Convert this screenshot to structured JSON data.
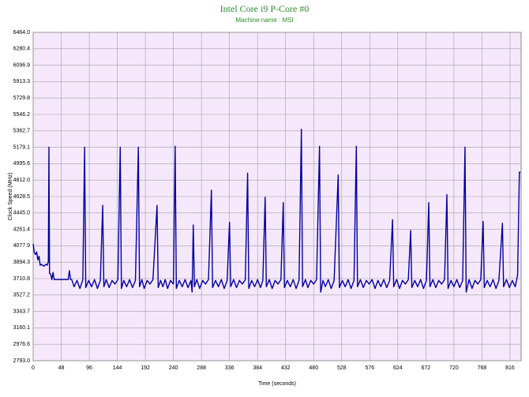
{
  "chart_data": {
    "type": "line",
    "title": "Intel Core i9 P-Core #0",
    "subtitle": "Machine name : MSI",
    "x_label": "Time (seconds)",
    "y_label": "Clock Speed (MHz)",
    "color": "#0000a0",
    "grid": true,
    "xlim": [
      0,
      835
    ],
    "ylim": [
      2793,
      6464
    ],
    "xticks": [
      0,
      48,
      96,
      144,
      192,
      240,
      288,
      336,
      384,
      432,
      480,
      528,
      576,
      624,
      672,
      720,
      768,
      816
    ],
    "yticks": [
      {
        "value": 2793,
        "label": "2793.0"
      },
      2976.6,
      3160.1,
      3343.7,
      3527.2,
      3710.8,
      3894.3,
      4077.9,
      4261.4,
      {
        "value": 4445,
        "label": "4445.0"
      },
      4628.5,
      {
        "value": 4812,
        "label": "4812.0"
      },
      4995.6,
      5179.1,
      5362.7,
      5546.2,
      5729.8,
      5913.3,
      6096.9,
      6280.4,
      {
        "value": 6464,
        "label": "6464.0"
      }
    ],
    "x": [
      0,
      2,
      4,
      6,
      8,
      10,
      12,
      14,
      16,
      18,
      20,
      22,
      24,
      26,
      27,
      28,
      30,
      32,
      34,
      36,
      40,
      44,
      48,
      52,
      56,
      60,
      62,
      64,
      66,
      70,
      75,
      80,
      85,
      88,
      90,
      95,
      100,
      105,
      110,
      115,
      119,
      121,
      125,
      130,
      135,
      140,
      145,
      149,
      151,
      155,
      160,
      165,
      170,
      175,
      180,
      182,
      186,
      190,
      195,
      200,
      205,
      212,
      214,
      218,
      222,
      226,
      230,
      235,
      240,
      243,
      245,
      250,
      255,
      260,
      265,
      270,
      272,
      274,
      276,
      280,
      285,
      290,
      295,
      300,
      305,
      307,
      312,
      317,
      322,
      327,
      332,
      336,
      338,
      343,
      348,
      353,
      358,
      363,
      367,
      369,
      374,
      379,
      384,
      389,
      393,
      397,
      399,
      404,
      409,
      414,
      419,
      424,
      428,
      430,
      435,
      440,
      445,
      450,
      455,
      459,
      461,
      466,
      470,
      475,
      480,
      485,
      490,
      492,
      496,
      500,
      505,
      510,
      515,
      522,
      524,
      529,
      534,
      539,
      544,
      549,
      553,
      555,
      560,
      565,
      570,
      575,
      580,
      585,
      590,
      595,
      600,
      605,
      610,
      615,
      617,
      622,
      627,
      632,
      637,
      642,
      646,
      648,
      653,
      658,
      663,
      668,
      673,
      677,
      679,
      684,
      689,
      694,
      699,
      704,
      708,
      710,
      715,
      720,
      725,
      730,
      735,
      739,
      741,
      746,
      751,
      756,
      761,
      766,
      770,
      772,
      777,
      782,
      787,
      792,
      797,
      803,
      805,
      810,
      815,
      820,
      825,
      829,
      832,
      834
    ],
    "values": [
      4100,
      4000,
      3980,
      4010,
      3920,
      3960,
      3860,
      3870,
      3860,
      3850,
      3860,
      3870,
      3860,
      3900,
      5180,
      3770,
      3760,
      3700,
      3780,
      3700,
      3700,
      3700,
      3700,
      3700,
      3700,
      3700,
      3800,
      3700,
      3700,
      3620,
      3690,
      3600,
      3700,
      5180,
      3610,
      3690,
      3620,
      3700,
      3600,
      3690,
      4530,
      3620,
      3700,
      3610,
      3690,
      3650,
      3700,
      5180,
      3600,
      3690,
      3620,
      3700,
      3610,
      3690,
      5180,
      3620,
      3700,
      3600,
      3690,
      3650,
      3700,
      4530,
      3610,
      3690,
      3620,
      3700,
      3600,
      3690,
      3650,
      5190,
      3600,
      3690,
      3620,
      3700,
      3610,
      3690,
      3560,
      4310,
      3620,
      3700,
      3600,
      3690,
      3650,
      3700,
      4700,
      3610,
      3690,
      3620,
      3700,
      3600,
      3690,
      4340,
      3620,
      3700,
      3610,
      3690,
      3650,
      3700,
      4890,
      3600,
      3690,
      3620,
      3700,
      3610,
      3690,
      4620,
      3620,
      3700,
      3600,
      3690,
      3650,
      3700,
      4560,
      3610,
      3690,
      3620,
      3700,
      3600,
      3690,
      5380,
      3620,
      3700,
      3610,
      3690,
      3650,
      3700,
      5190,
      3560,
      3690,
      3620,
      3700,
      3600,
      3690,
      4870,
      3610,
      3690,
      3620,
      3700,
      3600,
      3690,
      5190,
      3620,
      3700,
      3610,
      3690,
      3650,
      3700,
      3600,
      3690,
      3620,
      3700,
      3610,
      3690,
      4370,
      3620,
      3700,
      3600,
      3690,
      3650,
      3700,
      4250,
      3610,
      3690,
      3620,
      3700,
      3600,
      3690,
      4560,
      3620,
      3700,
      3610,
      3690,
      3650,
      3700,
      4650,
      3600,
      3690,
      3620,
      3700,
      3610,
      3690,
      5180,
      3560,
      3700,
      3600,
      3690,
      3650,
      3700,
      4350,
      3610,
      3690,
      3620,
      3700,
      3600,
      3690,
      4330,
      3620,
      3700,
      3610,
      3690,
      3620,
      3750,
      4900,
      4900
    ]
  }
}
